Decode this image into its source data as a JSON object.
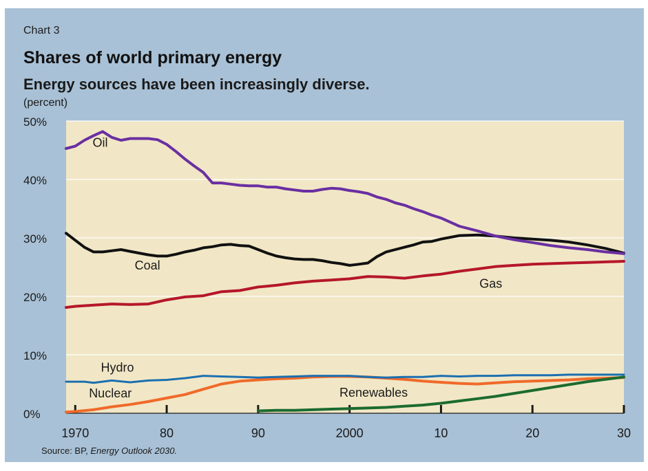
{
  "header": {
    "chart_label": "Chart 3",
    "title": "Shares of world primary energy",
    "subtitle": "Energy sources have been increasingly diverse.",
    "units": "(percent)"
  },
  "source": {
    "prefix": "Source: BP, ",
    "publication": "Energy Outlook 2030."
  },
  "colors": {
    "panel": "#a9c1d6",
    "plot_background": "#f1e7c6",
    "oil": "#6a2fa2",
    "coal": "#111111",
    "gas": "#b5172b",
    "hydro": "#1b6fb0",
    "nuclear": "#f06a2a",
    "renewables": "#1c6b2f"
  },
  "chart_data": {
    "type": "line",
    "title": "Shares of world primary energy",
    "subtitle": "Energy sources have been increasingly diverse.",
    "ylabel": "(percent)",
    "xlim": [
      1969,
      2030
    ],
    "ylim": [
      0,
      50
    ],
    "x_ticks": [
      {
        "value": 1970,
        "label": "1970"
      },
      {
        "value": 1980,
        "label": "80"
      },
      {
        "value": 1990,
        "label": "90"
      },
      {
        "value": 2000,
        "label": "2000"
      },
      {
        "value": 2010,
        "label": "10"
      },
      {
        "value": 2020,
        "label": "20"
      },
      {
        "value": 2030,
        "label": "30"
      }
    ],
    "y_ticks": [
      {
        "value": 0,
        "label": "0%"
      },
      {
        "value": 10,
        "label": "10%"
      },
      {
        "value": 20,
        "label": "20%"
      },
      {
        "value": 30,
        "label": "30%"
      },
      {
        "value": 40,
        "label": "40%"
      },
      {
        "value": 50,
        "label": "50%"
      }
    ],
    "grid": true,
    "series": [
      {
        "name": "Oil",
        "key": "oil",
        "points": [
          [
            1969,
            45.3
          ],
          [
            1970,
            45.7
          ],
          [
            1971,
            46.7
          ],
          [
            1972,
            47.5
          ],
          [
            1973,
            48.2
          ],
          [
            1974,
            47.2
          ],
          [
            1975,
            46.7
          ],
          [
            1976,
            47.0
          ],
          [
            1977,
            47.0
          ],
          [
            1978,
            47.0
          ],
          [
            1979,
            46.8
          ],
          [
            1980,
            46.0
          ],
          [
            1981,
            44.8
          ],
          [
            1982,
            43.5
          ],
          [
            1983,
            42.3
          ],
          [
            1984,
            41.2
          ],
          [
            1985,
            39.4
          ],
          [
            1986,
            39.4
          ],
          [
            1987,
            39.2
          ],
          [
            1988,
            39.0
          ],
          [
            1989,
            38.9
          ],
          [
            1990,
            38.9
          ],
          [
            1991,
            38.7
          ],
          [
            1992,
            38.7
          ],
          [
            1993,
            38.4
          ],
          [
            1994,
            38.2
          ],
          [
            1995,
            38.0
          ],
          [
            1996,
            38.0
          ],
          [
            1997,
            38.3
          ],
          [
            1998,
            38.5
          ],
          [
            1999,
            38.4
          ],
          [
            2000,
            38.1
          ],
          [
            2001,
            37.9
          ],
          [
            2002,
            37.6
          ],
          [
            2003,
            37.0
          ],
          [
            2004,
            36.6
          ],
          [
            2005,
            36.0
          ],
          [
            2006,
            35.6
          ],
          [
            2007,
            35.0
          ],
          [
            2008,
            34.5
          ],
          [
            2009,
            33.9
          ],
          [
            2010,
            33.4
          ],
          [
            2012,
            32.0
          ],
          [
            2014,
            31.2
          ],
          [
            2016,
            30.3
          ],
          [
            2018,
            29.7
          ],
          [
            2020,
            29.2
          ],
          [
            2022,
            28.7
          ],
          [
            2024,
            28.3
          ],
          [
            2026,
            28.0
          ],
          [
            2028,
            27.6
          ],
          [
            2030,
            27.3
          ]
        ]
      },
      {
        "name": "Coal",
        "key": "coal",
        "points": [
          [
            1969,
            30.8
          ],
          [
            1970,
            29.6
          ],
          [
            1971,
            28.4
          ],
          [
            1972,
            27.6
          ],
          [
            1973,
            27.6
          ],
          [
            1974,
            27.8
          ],
          [
            1975,
            28.0
          ],
          [
            1976,
            27.7
          ],
          [
            1977,
            27.4
          ],
          [
            1978,
            27.1
          ],
          [
            1979,
            26.9
          ],
          [
            1980,
            26.9
          ],
          [
            1981,
            27.2
          ],
          [
            1982,
            27.6
          ],
          [
            1983,
            27.9
          ],
          [
            1984,
            28.3
          ],
          [
            1985,
            28.5
          ],
          [
            1986,
            28.8
          ],
          [
            1987,
            28.9
          ],
          [
            1988,
            28.7
          ],
          [
            1989,
            28.6
          ],
          [
            1990,
            28.0
          ],
          [
            1991,
            27.4
          ],
          [
            1992,
            26.9
          ],
          [
            1993,
            26.6
          ],
          [
            1994,
            26.4
          ],
          [
            1995,
            26.3
          ],
          [
            1996,
            26.3
          ],
          [
            1997,
            26.1
          ],
          [
            1998,
            25.8
          ],
          [
            1999,
            25.6
          ],
          [
            2000,
            25.3
          ],
          [
            2001,
            25.5
          ],
          [
            2002,
            25.7
          ],
          [
            2003,
            26.8
          ],
          [
            2004,
            27.6
          ],
          [
            2005,
            28.0
          ],
          [
            2006,
            28.4
          ],
          [
            2007,
            28.8
          ],
          [
            2008,
            29.3
          ],
          [
            2009,
            29.4
          ],
          [
            2010,
            29.8
          ],
          [
            2012,
            30.4
          ],
          [
            2014,
            30.5
          ],
          [
            2016,
            30.3
          ],
          [
            2018,
            30.0
          ],
          [
            2020,
            29.8
          ],
          [
            2022,
            29.6
          ],
          [
            2024,
            29.3
          ],
          [
            2026,
            28.8
          ],
          [
            2028,
            28.2
          ],
          [
            2030,
            27.4
          ]
        ]
      },
      {
        "name": "Gas",
        "key": "gas",
        "points": [
          [
            1969,
            18.1
          ],
          [
            1970,
            18.3
          ],
          [
            1972,
            18.5
          ],
          [
            1974,
            18.7
          ],
          [
            1976,
            18.6
          ],
          [
            1978,
            18.7
          ],
          [
            1980,
            19.4
          ],
          [
            1982,
            19.9
          ],
          [
            1984,
            20.1
          ],
          [
            1986,
            20.8
          ],
          [
            1988,
            21.0
          ],
          [
            1990,
            21.6
          ],
          [
            1992,
            21.9
          ],
          [
            1994,
            22.3
          ],
          [
            1996,
            22.6
          ],
          [
            1998,
            22.8
          ],
          [
            2000,
            23.0
          ],
          [
            2002,
            23.4
          ],
          [
            2004,
            23.3
          ],
          [
            2006,
            23.1
          ],
          [
            2008,
            23.5
          ],
          [
            2010,
            23.8
          ],
          [
            2012,
            24.3
          ],
          [
            2014,
            24.7
          ],
          [
            2016,
            25.1
          ],
          [
            2018,
            25.3
          ],
          [
            2020,
            25.5
          ],
          [
            2022,
            25.6
          ],
          [
            2024,
            25.7
          ],
          [
            2026,
            25.8
          ],
          [
            2028,
            25.9
          ],
          [
            2030,
            26.0
          ]
        ]
      },
      {
        "name": "Hydro",
        "key": "hydro",
        "points": [
          [
            1969,
            5.4
          ],
          [
            1971,
            5.4
          ],
          [
            1972,
            5.2
          ],
          [
            1974,
            5.6
          ],
          [
            1976,
            5.3
          ],
          [
            1978,
            5.6
          ],
          [
            1980,
            5.7
          ],
          [
            1982,
            6.0
          ],
          [
            1984,
            6.4
          ],
          [
            1986,
            6.3
          ],
          [
            1988,
            6.2
          ],
          [
            1990,
            6.1
          ],
          [
            1992,
            6.2
          ],
          [
            1994,
            6.3
          ],
          [
            1996,
            6.4
          ],
          [
            1998,
            6.4
          ],
          [
            2000,
            6.4
          ],
          [
            2002,
            6.2
          ],
          [
            2004,
            6.1
          ],
          [
            2006,
            6.2
          ],
          [
            2008,
            6.2
          ],
          [
            2010,
            6.4
          ],
          [
            2012,
            6.3
          ],
          [
            2014,
            6.4
          ],
          [
            2016,
            6.4
          ],
          [
            2018,
            6.5
          ],
          [
            2020,
            6.5
          ],
          [
            2022,
            6.5
          ],
          [
            2024,
            6.6
          ],
          [
            2026,
            6.6
          ],
          [
            2028,
            6.6
          ],
          [
            2030,
            6.6
          ]
        ]
      },
      {
        "name": "Nuclear",
        "key": "nuclear",
        "points": [
          [
            1969,
            0.2
          ],
          [
            1970,
            0.3
          ],
          [
            1972,
            0.6
          ],
          [
            1974,
            1.1
          ],
          [
            1976,
            1.5
          ],
          [
            1978,
            2.0
          ],
          [
            1980,
            2.6
          ],
          [
            1982,
            3.2
          ],
          [
            1984,
            4.1
          ],
          [
            1986,
            5.0
          ],
          [
            1988,
            5.5
          ],
          [
            1990,
            5.7
          ],
          [
            1992,
            5.9
          ],
          [
            1994,
            6.0
          ],
          [
            1996,
            6.2
          ],
          [
            1998,
            6.3
          ],
          [
            2000,
            6.3
          ],
          [
            2002,
            6.2
          ],
          [
            2004,
            6.0
          ],
          [
            2006,
            5.8
          ],
          [
            2008,
            5.5
          ],
          [
            2010,
            5.3
          ],
          [
            2012,
            5.1
          ],
          [
            2014,
            5.0
          ],
          [
            2016,
            5.2
          ],
          [
            2018,
            5.4
          ],
          [
            2020,
            5.5
          ],
          [
            2022,
            5.6
          ],
          [
            2024,
            5.7
          ],
          [
            2026,
            5.9
          ],
          [
            2028,
            6.0
          ],
          [
            2030,
            6.1
          ]
        ]
      },
      {
        "name": "Renewables",
        "key": "renewables",
        "points": [
          [
            1990,
            0.4
          ],
          [
            1992,
            0.5
          ],
          [
            1994,
            0.5
          ],
          [
            1996,
            0.6
          ],
          [
            1998,
            0.7
          ],
          [
            2000,
            0.8
          ],
          [
            2002,
            0.9
          ],
          [
            2004,
            1.0
          ],
          [
            2006,
            1.2
          ],
          [
            2008,
            1.4
          ],
          [
            2010,
            1.7
          ],
          [
            2012,
            2.1
          ],
          [
            2014,
            2.5
          ],
          [
            2016,
            2.9
          ],
          [
            2018,
            3.4
          ],
          [
            2020,
            3.9
          ],
          [
            2022,
            4.4
          ],
          [
            2024,
            4.9
          ],
          [
            2026,
            5.4
          ],
          [
            2028,
            5.8
          ],
          [
            2030,
            6.2
          ]
        ]
      }
    ],
    "annotations": [
      {
        "key": "oil",
        "text": "Oil",
        "x": 1971.9,
        "y": 45.6
      },
      {
        "key": "coal",
        "text": "Coal",
        "x": 1976.5,
        "y": 24.6
      },
      {
        "key": "gas",
        "text": "Gas",
        "x": 2014.2,
        "y": 21.5
      },
      {
        "key": "hydro",
        "text": "Hydro",
        "x": 1972.8,
        "y": 7.1
      },
      {
        "key": "nuclear",
        "text": "Nuclear",
        "x": 1971.5,
        "y": 2.7
      },
      {
        "key": "renewables",
        "text": "Renewables",
        "x": 1998.9,
        "y": 2.8
      }
    ]
  }
}
